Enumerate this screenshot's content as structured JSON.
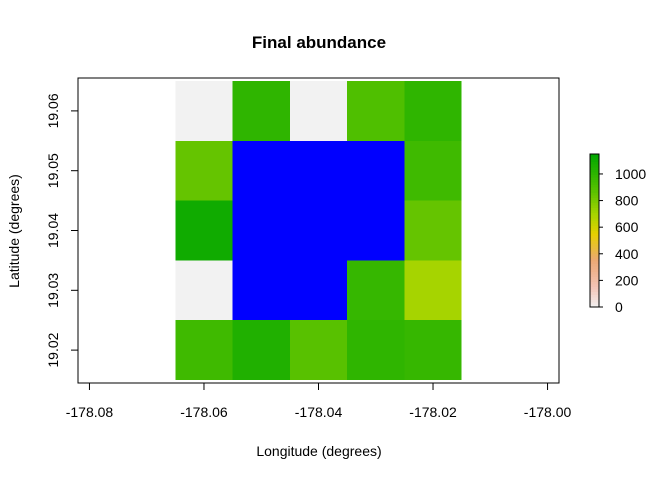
{
  "chart_data": {
    "type": "heatmap",
    "title": "Final abundance",
    "xlabel": "Longitude (degrees)",
    "ylabel": "Latitude (degrees)",
    "xlim": [
      -178.082,
      -177.998
    ],
    "ylim": [
      19.0145,
      19.0655
    ],
    "x_ticks": [
      -178.08,
      -178.06,
      -178.04,
      -178.02,
      -178.0
    ],
    "x_tick_labels": [
      "-178.08",
      "-178.06",
      "-178.04",
      "-178.02",
      "-178.00"
    ],
    "y_ticks": [
      19.02,
      19.03,
      19.04,
      19.05,
      19.06
    ],
    "y_tick_labels": [
      "19.02",
      "19.03",
      "19.04",
      "19.05",
      "19.06"
    ],
    "cell_width": 0.01,
    "cell_height": 0.01,
    "x_centers": [
      -178.06,
      -178.05,
      -178.04,
      -178.03,
      -178.02
    ],
    "y_centers": [
      19.06,
      19.05,
      19.04,
      19.03,
      19.02
    ],
    "values": [
      [
        0,
        1000,
        0,
        900,
        1000
      ],
      [
        850,
        null,
        null,
        null,
        950
      ],
      [
        1100,
        null,
        null,
        null,
        850
      ],
      [
        0,
        null,
        null,
        980,
        700
      ],
      [
        950,
        1050,
        880,
        1000,
        980
      ]
    ],
    "na_color": "#0000ff",
    "zero_color": "#f2f2f2",
    "legend": {
      "ticks": [
        0,
        200,
        400,
        600,
        800,
        1000
      ],
      "tick_labels": [
        "0",
        "200",
        "400",
        "600",
        "800",
        "1000"
      ],
      "range": [
        0,
        1150
      ],
      "placement": "right"
    },
    "colorscale": [
      {
        "v": 0,
        "color": "#f2f2f2"
      },
      {
        "v": 150,
        "color": "#f2c4b6"
      },
      {
        "v": 350,
        "color": "#eba875"
      },
      {
        "v": 550,
        "color": "#e6cf00"
      },
      {
        "v": 700,
        "color": "#a6d400"
      },
      {
        "v": 900,
        "color": "#4fbf00"
      },
      {
        "v": 1150,
        "color": "#00a600"
      }
    ]
  }
}
